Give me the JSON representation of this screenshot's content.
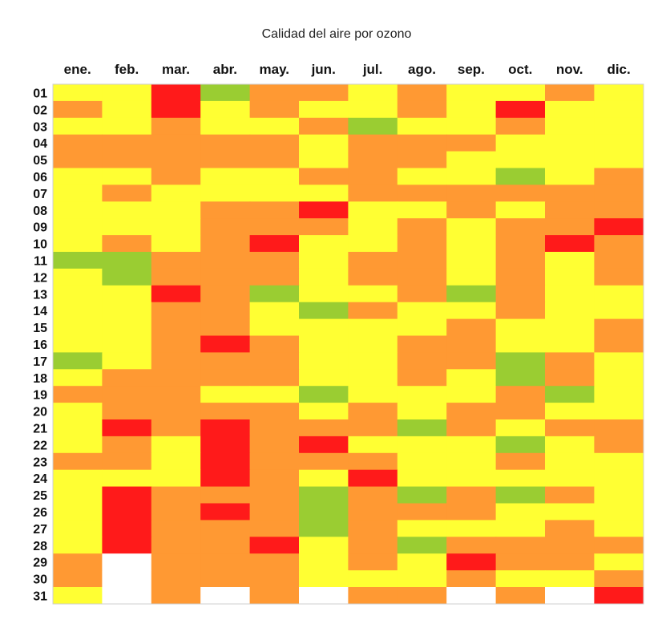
{
  "colors": {
    "verde": "#9acd32",
    "amarillo": "#ffff33",
    "naranja": "#ff9933",
    "rojo": "#ff1a1a",
    "vacio": "#ffffff"
  },
  "chart_data": {
    "type": "heatmap",
    "title": "Calidad del aire por ozono",
    "months": [
      "ene.",
      "feb.",
      "mar.",
      "abr.",
      "may.",
      "jun.",
      "jul.",
      "ago.",
      "sep.",
      "oct.",
      "nov.",
      "dic."
    ],
    "days": [
      "01",
      "02",
      "03",
      "04",
      "05",
      "06",
      "07",
      "08",
      "09",
      "10",
      "11",
      "12",
      "13",
      "14",
      "15",
      "16",
      "17",
      "18",
      "19",
      "20",
      "21",
      "22",
      "23",
      "24",
      "25",
      "26",
      "27",
      "28",
      "29",
      "30",
      "31"
    ],
    "legend_codes": {
      "G": "verde",
      "Y": "amarillo",
      "O": "naranja",
      "R": "rojo",
      "-": "vacio"
    },
    "grid": [
      [
        "Y",
        "Y",
        "R",
        "G",
        "O",
        "O",
        "Y",
        "O",
        "Y",
        "Y",
        "O",
        "Y"
      ],
      [
        "O",
        "Y",
        "R",
        "Y",
        "O",
        "Y",
        "Y",
        "O",
        "Y",
        "R",
        "Y",
        "Y"
      ],
      [
        "Y",
        "Y",
        "O",
        "Y",
        "Y",
        "O",
        "G",
        "Y",
        "Y",
        "O",
        "Y",
        "Y"
      ],
      [
        "O",
        "O",
        "O",
        "O",
        "O",
        "Y",
        "O",
        "O",
        "O",
        "Y",
        "Y",
        "Y"
      ],
      [
        "O",
        "O",
        "O",
        "O",
        "O",
        "Y",
        "O",
        "O",
        "Y",
        "Y",
        "Y",
        "Y"
      ],
      [
        "Y",
        "Y",
        "O",
        "Y",
        "Y",
        "O",
        "O",
        "Y",
        "Y",
        "G",
        "Y",
        "O"
      ],
      [
        "Y",
        "O",
        "Y",
        "Y",
        "Y",
        "Y",
        "O",
        "O",
        "O",
        "O",
        "O",
        "O"
      ],
      [
        "Y",
        "Y",
        "Y",
        "O",
        "O",
        "R",
        "Y",
        "Y",
        "O",
        "Y",
        "O",
        "O"
      ],
      [
        "Y",
        "Y",
        "Y",
        "O",
        "O",
        "O",
        "Y",
        "O",
        "Y",
        "O",
        "O",
        "R"
      ],
      [
        "Y",
        "O",
        "Y",
        "O",
        "R",
        "Y",
        "Y",
        "O",
        "Y",
        "O",
        "R",
        "O"
      ],
      [
        "G",
        "G",
        "O",
        "O",
        "O",
        "Y",
        "O",
        "O",
        "Y",
        "O",
        "Y",
        "O"
      ],
      [
        "Y",
        "G",
        "O",
        "O",
        "O",
        "Y",
        "O",
        "O",
        "Y",
        "O",
        "Y",
        "O"
      ],
      [
        "Y",
        "Y",
        "R",
        "O",
        "G",
        "Y",
        "Y",
        "O",
        "G",
        "O",
        "Y",
        "Y"
      ],
      [
        "Y",
        "Y",
        "O",
        "O",
        "Y",
        "G",
        "O",
        "Y",
        "Y",
        "O",
        "Y",
        "Y"
      ],
      [
        "Y",
        "Y",
        "O",
        "O",
        "Y",
        "Y",
        "Y",
        "Y",
        "O",
        "Y",
        "Y",
        "O"
      ],
      [
        "Y",
        "Y",
        "O",
        "R",
        "O",
        "Y",
        "Y",
        "O",
        "O",
        "Y",
        "Y",
        "O"
      ],
      [
        "G",
        "Y",
        "O",
        "O",
        "O",
        "Y",
        "Y",
        "O",
        "O",
        "G",
        "O",
        "Y"
      ],
      [
        "Y",
        "O",
        "O",
        "O",
        "O",
        "Y",
        "Y",
        "O",
        "Y",
        "G",
        "O",
        "Y"
      ],
      [
        "O",
        "O",
        "O",
        "Y",
        "Y",
        "G",
        "Y",
        "Y",
        "Y",
        "O",
        "G",
        "Y"
      ],
      [
        "Y",
        "O",
        "O",
        "O",
        "O",
        "Y",
        "O",
        "Y",
        "O",
        "O",
        "Y",
        "Y"
      ],
      [
        "Y",
        "R",
        "O",
        "R",
        "O",
        "O",
        "O",
        "G",
        "O",
        "Y",
        "O",
        "O"
      ],
      [
        "Y",
        "O",
        "Y",
        "R",
        "O",
        "R",
        "Y",
        "Y",
        "Y",
        "G",
        "Y",
        "O"
      ],
      [
        "O",
        "O",
        "Y",
        "R",
        "O",
        "O",
        "O",
        "Y",
        "Y",
        "O",
        "Y",
        "Y"
      ],
      [
        "Y",
        "Y",
        "Y",
        "R",
        "O",
        "Y",
        "R",
        "Y",
        "Y",
        "Y",
        "Y",
        "Y"
      ],
      [
        "Y",
        "R",
        "O",
        "O",
        "O",
        "G",
        "O",
        "G",
        "O",
        "G",
        "O",
        "Y"
      ],
      [
        "Y",
        "R",
        "O",
        "R",
        "O",
        "G",
        "O",
        "O",
        "O",
        "Y",
        "Y",
        "Y"
      ],
      [
        "Y",
        "R",
        "O",
        "O",
        "O",
        "G",
        "O",
        "Y",
        "Y",
        "Y",
        "O",
        "Y"
      ],
      [
        "Y",
        "R",
        "O",
        "O",
        "R",
        "Y",
        "O",
        "G",
        "O",
        "O",
        "O",
        "O"
      ],
      [
        "O",
        "-",
        "O",
        "O",
        "O",
        "Y",
        "O",
        "Y",
        "R",
        "O",
        "O",
        "Y"
      ],
      [
        "O",
        "-",
        "O",
        "O",
        "O",
        "Y",
        "Y",
        "Y",
        "O",
        "Y",
        "Y",
        "O"
      ],
      [
        "Y",
        "-",
        "O",
        "-",
        "O",
        "-",
        "O",
        "O",
        "-",
        "O",
        "-",
        "R"
      ]
    ]
  }
}
